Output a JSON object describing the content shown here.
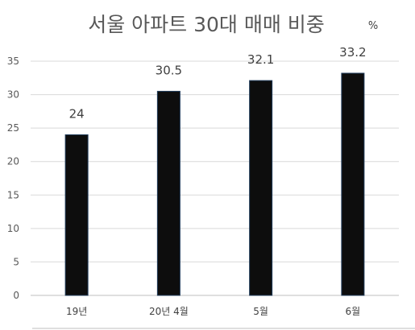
{
  "chart_data": {
    "type": "bar",
    "title": "서울 아파트 30대 매매 비중",
    "unit": "%",
    "categories": [
      "19년",
      "20년 4월",
      "5월",
      "6월"
    ],
    "values": [
      24,
      30.5,
      32.1,
      33.2
    ],
    "data_labels": [
      "24",
      "30.5",
      "32.1",
      "33.2"
    ],
    "ylim": [
      0,
      35
    ],
    "yticks": [
      0,
      5,
      10,
      15,
      20,
      25,
      30,
      35
    ],
    "grid": true,
    "legend": "none",
    "bar_color": "#0d0d0d"
  }
}
